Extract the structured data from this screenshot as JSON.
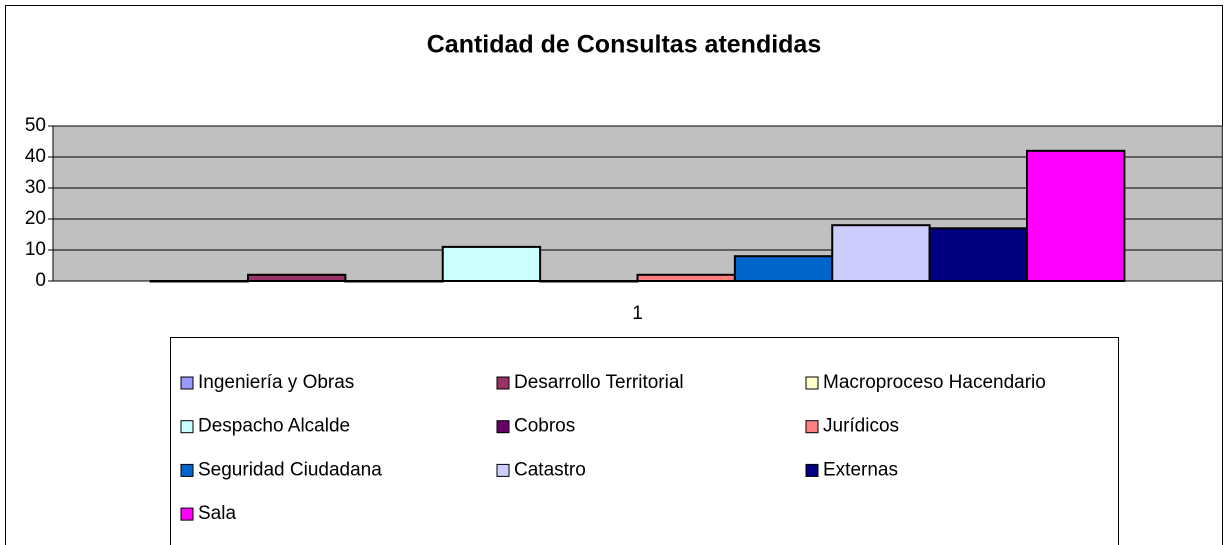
{
  "chart_data": {
    "type": "bar",
    "title": "Cantidad de Consultas atendidas",
    "categories": [
      "1"
    ],
    "series": [
      {
        "name": "Ingeniería y Obras",
        "color": "#9999ff",
        "values": [
          0
        ]
      },
      {
        "name": "Desarrollo Territorial",
        "color": "#993366",
        "values": [
          2
        ]
      },
      {
        "name": "Macroproceso Hacendario",
        "color": "#ffffcc",
        "values": [
          0
        ]
      },
      {
        "name": "Despacho Alcalde",
        "color": "#ccffff",
        "values": [
          11
        ]
      },
      {
        "name": "Cobros",
        "color": "#660066",
        "values": [
          0
        ]
      },
      {
        "name": "Jurídicos",
        "color": "#ff8080",
        "values": [
          2
        ]
      },
      {
        "name": "Seguridad Ciudadana",
        "color": "#0066cc",
        "values": [
          8
        ]
      },
      {
        "name": "Catastro",
        "color": "#ccccff",
        "values": [
          18
        ]
      },
      {
        "name": "Externas",
        "color": "#000080",
        "values": [
          17
        ]
      },
      {
        "name": "Sala",
        "color": "#ff00ff",
        "values": [
          42
        ]
      }
    ],
    "ylim": [
      0,
      50
    ],
    "yticks": [
      0,
      10,
      20,
      30,
      40,
      50
    ],
    "grid": true,
    "legend": "bottom"
  }
}
